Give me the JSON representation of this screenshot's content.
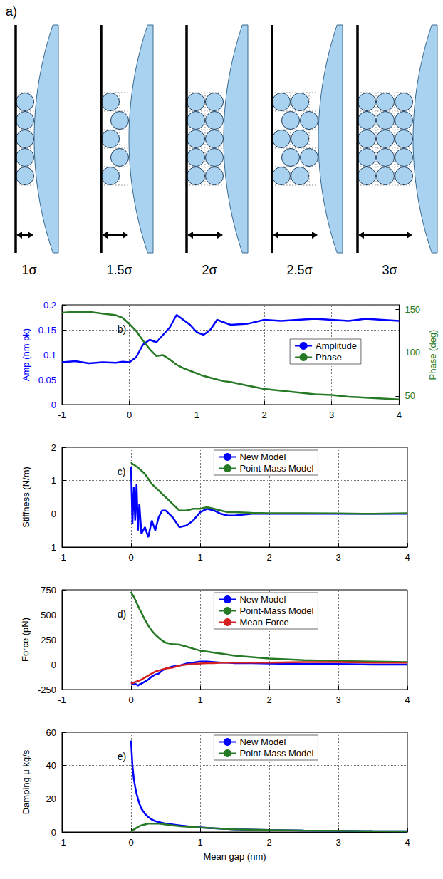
{
  "diagram": {
    "label": "a)",
    "panels": [
      {
        "gap": 1,
        "label": "1σ"
      },
      {
        "gap": 1.5,
        "label": "1.5σ"
      },
      {
        "gap": 2,
        "label": "2σ"
      },
      {
        "gap": 2.5,
        "label": "2.5σ"
      },
      {
        "gap": 3,
        "label": "3σ"
      }
    ]
  },
  "chart_data": [
    {
      "type": "line",
      "title": "b)",
      "x": [
        -1,
        -0.8,
        -0.6,
        -0.4,
        -0.2,
        -0.1,
        0,
        0.1,
        0.2,
        0.3,
        0.4,
        0.5,
        0.6,
        0.7,
        0.8,
        0.9,
        1.0,
        1.1,
        1.2,
        1.3,
        1.4,
        1.5,
        1.75,
        2,
        2.25,
        2.5,
        2.75,
        3,
        3.25,
        3.5,
        3.75,
        4
      ],
      "series": [
        {
          "name": "Amplitude",
          "color": "#0000ff",
          "values": [
            0.085,
            0.087,
            0.083,
            0.085,
            0.084,
            0.086,
            0.085,
            0.095,
            0.12,
            0.13,
            0.125,
            0.14,
            0.155,
            0.18,
            0.17,
            0.16,
            0.145,
            0.14,
            0.15,
            0.17,
            0.165,
            0.16,
            0.162,
            0.17,
            0.168,
            0.17,
            0.172,
            0.17,
            0.168,
            0.172,
            0.17,
            0.168
          ]
        },
        {
          "name": "Phase",
          "color": "#267a26",
          "axis": "y2",
          "values": [
            146,
            147,
            147,
            145,
            143,
            140,
            133,
            125,
            114,
            104,
            96,
            97,
            92,
            86,
            82,
            79,
            76,
            73,
            71,
            69,
            67,
            66,
            62,
            58,
            56,
            54,
            52,
            51,
            49,
            48,
            47,
            46
          ]
        }
      ],
      "xlim": [
        -1,
        4
      ],
      "xticks": [
        -1,
        0,
        1,
        2,
        3,
        4
      ],
      "ylim": [
        0,
        0.2
      ],
      "yticks": [
        0,
        0.05,
        0.1,
        0.15,
        0.2
      ],
      "y2lim": [
        40,
        155
      ],
      "y2ticks": [
        50,
        100,
        150
      ],
      "ylabel": "Amp (nm pk)",
      "y2label": "Phase (deg)",
      "grid": true,
      "legend": "right"
    },
    {
      "type": "line",
      "title": "c)",
      "x": [
        0,
        0.02,
        0.04,
        0.06,
        0.08,
        0.1,
        0.12,
        0.15,
        0.2,
        0.25,
        0.3,
        0.35,
        0.4,
        0.45,
        0.5,
        0.6,
        0.7,
        0.8,
        0.9,
        1,
        1.1,
        1.2,
        1.3,
        1.4,
        1.5,
        1.75,
        2,
        2.5,
        3,
        3.5,
        4
      ],
      "series": [
        {
          "name": "New Model",
          "color": "#0000ff",
          "values": [
            1.4,
            -0.3,
            0.8,
            -0.2,
            0.9,
            -0.5,
            0.3,
            -0.6,
            -0.4,
            -0.7,
            -0.2,
            -0.5,
            -0.1,
            0.1,
            0.1,
            -0.1,
            -0.4,
            -0.35,
            -0.2,
            0.05,
            0.15,
            0.1,
            0,
            -0.05,
            -0.05,
            0,
            0,
            0,
            0,
            0,
            0
          ]
        },
        {
          "name": "Point-Mass Model",
          "color": "#267a26",
          "values": [
            1.55,
            1.5,
            1.48,
            1.45,
            1.42,
            1.4,
            1.35,
            1.3,
            1.2,
            1.05,
            0.9,
            0.8,
            0.7,
            0.6,
            0.5,
            0.3,
            0.1,
            0.1,
            0.15,
            0.15,
            0.2,
            0.15,
            0.1,
            0.05,
            0.05,
            0.03,
            0.02,
            0.02,
            0.01,
            0,
            0.02
          ]
        }
      ],
      "xlim": [
        -1,
        4
      ],
      "xticks": [
        -1,
        0,
        1,
        2,
        3,
        4
      ],
      "ylim": [
        -1,
        2
      ],
      "yticks": [
        -1,
        0,
        1,
        2
      ],
      "ylabel": "Stiffness (N/m)",
      "grid": true,
      "legend": "top"
    },
    {
      "type": "line",
      "title": "d)",
      "x": [
        0,
        0.02,
        0.04,
        0.06,
        0.08,
        0.1,
        0.12,
        0.15,
        0.2,
        0.25,
        0.3,
        0.35,
        0.4,
        0.45,
        0.5,
        0.6,
        0.7,
        0.8,
        0.9,
        1,
        1.1,
        1.2,
        1.3,
        1.4,
        1.5,
        1.75,
        2,
        2.5,
        3,
        3.5,
        4
      ],
      "series": [
        {
          "name": "New Model",
          "color": "#0000ff",
          "values": [
            -180,
            -190,
            -200,
            -195,
            -200,
            -210,
            -200,
            -190,
            -170,
            -150,
            -120,
            -100,
            -90,
            -60,
            -40,
            -20,
            -10,
            10,
            20,
            30,
            30,
            25,
            20,
            20,
            15,
            15,
            10,
            5,
            5,
            0,
            0
          ]
        },
        {
          "name": "Point-Mass Model",
          "color": "#267a26",
          "values": [
            730,
            700,
            680,
            650,
            620,
            590,
            560,
            520,
            450,
            390,
            340,
            300,
            270,
            240,
            220,
            205,
            200,
            180,
            160,
            140,
            130,
            120,
            110,
            100,
            90,
            75,
            60,
            45,
            35,
            30,
            25
          ]
        },
        {
          "name": "Mean Force",
          "color": "#d62020",
          "values": [
            -190,
            -185,
            -180,
            -175,
            -170,
            -165,
            -160,
            -150,
            -130,
            -110,
            -90,
            -70,
            -60,
            -50,
            -40,
            -30,
            -10,
            0,
            5,
            10,
            15,
            15,
            20,
            20,
            20,
            20,
            20,
            25,
            25,
            20,
            20
          ]
        }
      ],
      "xlim": [
        -1,
        4
      ],
      "xticks": [
        -1,
        0,
        1,
        2,
        3,
        4
      ],
      "ylim": [
        -250,
        750
      ],
      "yticks": [
        -250,
        0,
        250,
        500,
        750
      ],
      "ylabel": "Force (pN)",
      "grid": true,
      "legend": "top"
    },
    {
      "type": "line",
      "title": "e)",
      "x": [
        0,
        0.02,
        0.04,
        0.06,
        0.08,
        0.1,
        0.12,
        0.15,
        0.2,
        0.25,
        0.3,
        0.35,
        0.4,
        0.45,
        0.5,
        0.6,
        0.7,
        0.8,
        0.9,
        1,
        1.1,
        1.2,
        1.3,
        1.4,
        1.5,
        1.75,
        2,
        2.5,
        3,
        3.5,
        4
      ],
      "series": [
        {
          "name": "New Model",
          "color": "#0000ff",
          "values": [
            55,
            40,
            32,
            27,
            23,
            20,
            17,
            14,
            11,
            9,
            7.5,
            6.5,
            6,
            5.5,
            5,
            4.5,
            4,
            3.5,
            3,
            2.8,
            2.5,
            2.2,
            2,
            1.8,
            1.6,
            1.4,
            1.2,
            0.9,
            0.7,
            0.5,
            0.4
          ]
        },
        {
          "name": "Point-Mass Model",
          "color": "#267a26",
          "values": [
            0,
            1,
            1.5,
            2,
            2.5,
            3,
            3.5,
            4,
            4.5,
            5,
            5,
            5,
            5,
            4.8,
            4.5,
            4,
            3.5,
            3.2,
            3,
            2.7,
            2.5,
            2.3,
            2,
            1.8,
            1.6,
            1.4,
            1.2,
            0.9,
            0.7,
            0.5,
            0.4
          ]
        }
      ],
      "xlim": [
        -1,
        4
      ],
      "xticks": [
        -1,
        0,
        1,
        2,
        3,
        4
      ],
      "ylim": [
        0,
        60
      ],
      "yticks": [
        0,
        20,
        40,
        60
      ],
      "ylabel": "Damping μ kg/s",
      "xlabel": "Mean gap (nm)",
      "grid": true,
      "legend": "top"
    }
  ]
}
